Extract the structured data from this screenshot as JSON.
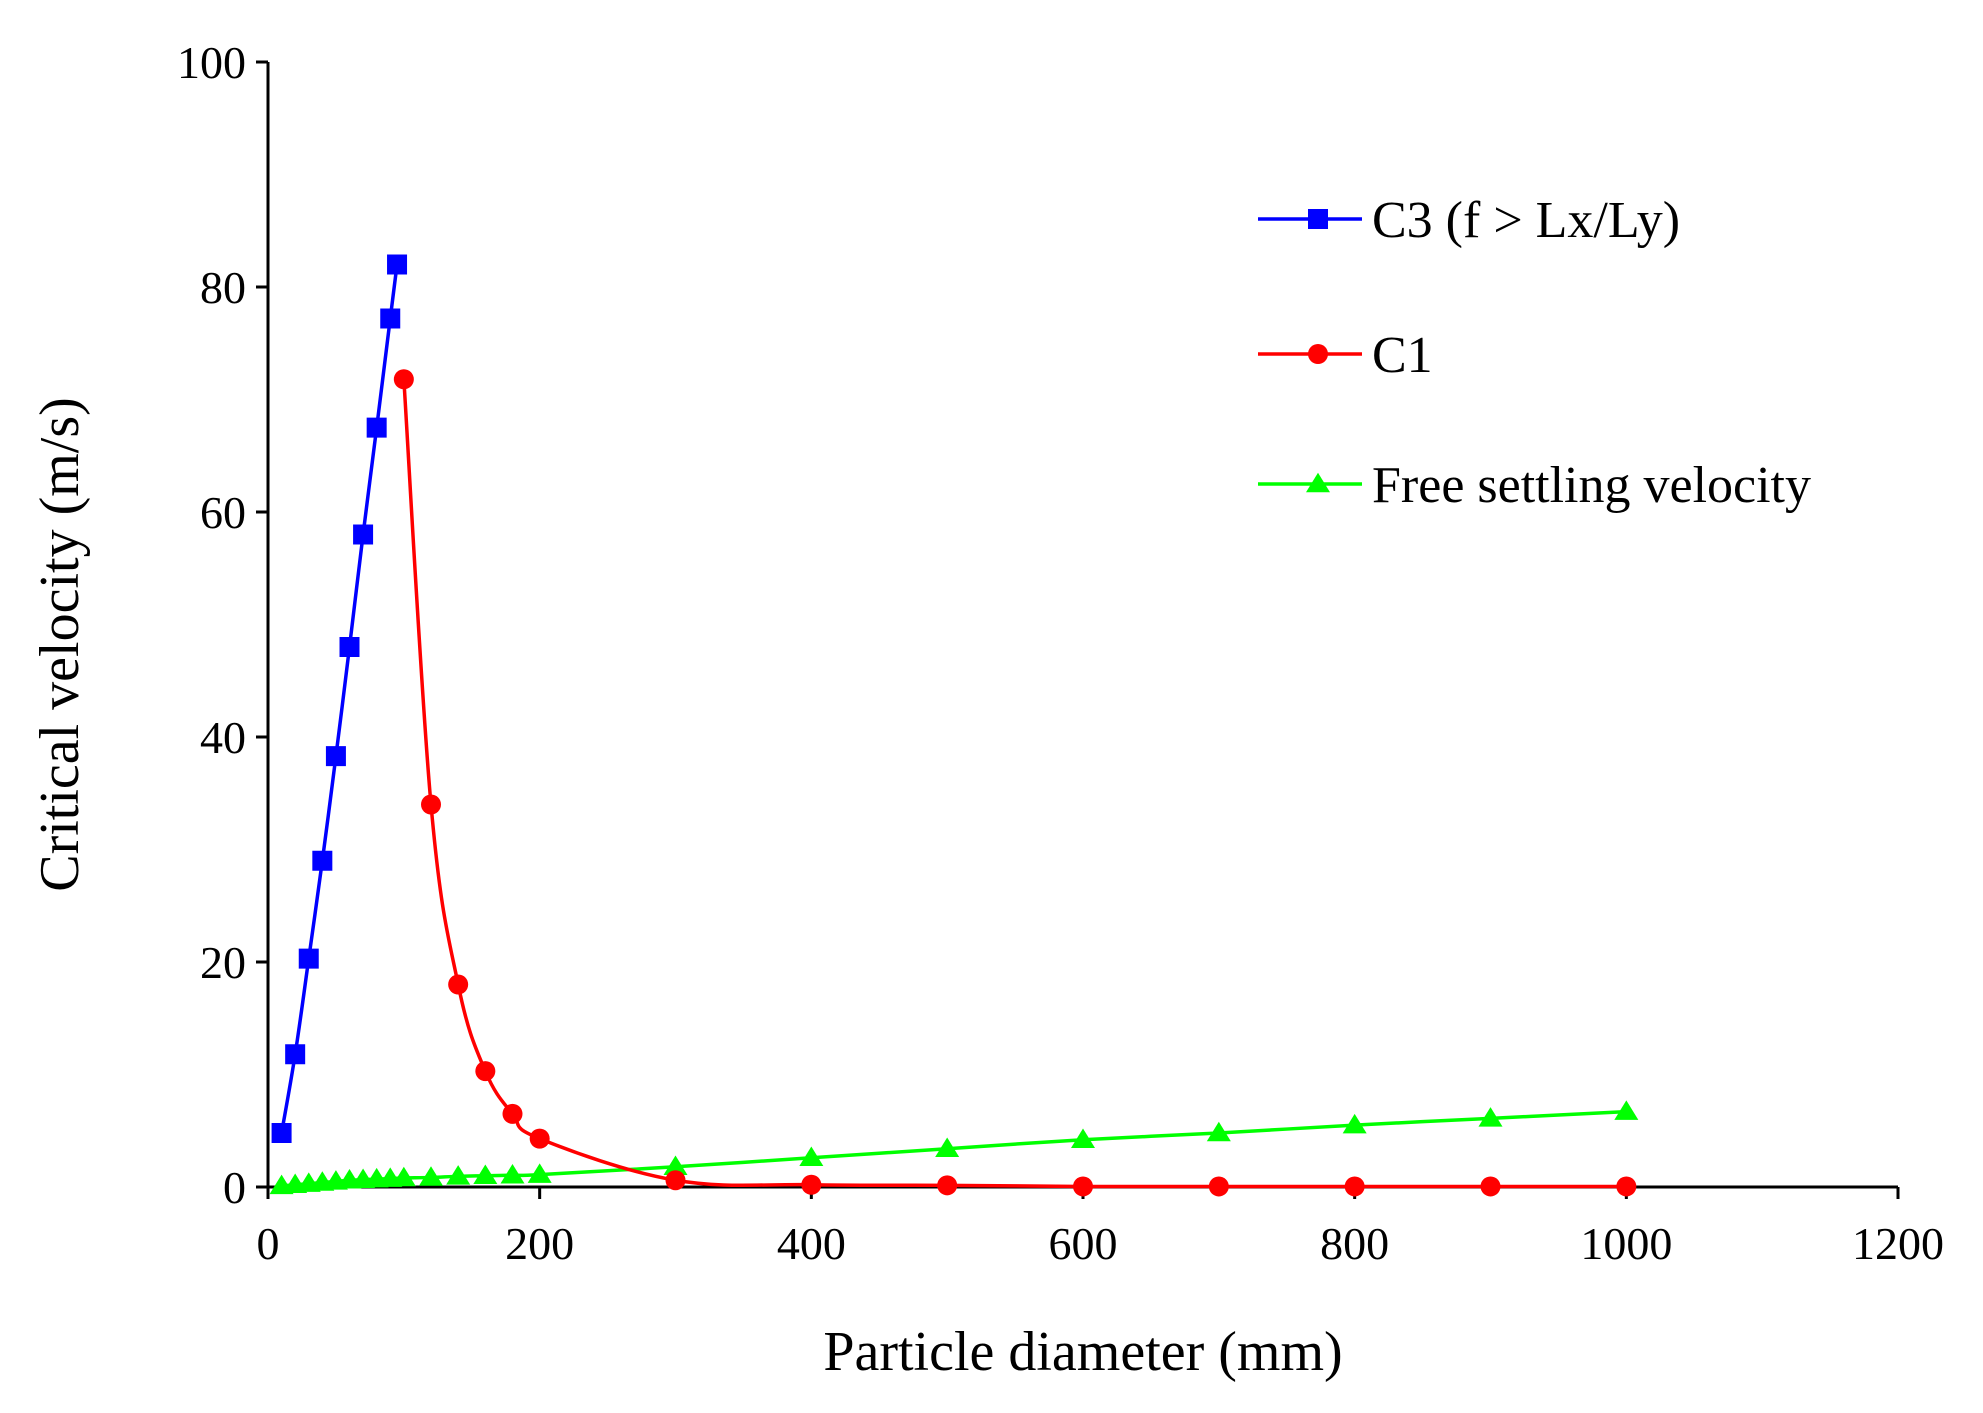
{
  "chart_data": {
    "type": "line",
    "xlabel": "Particle diameter (mm)",
    "ylabel": "Critical velocity (m/s)",
    "xlim": [
      0,
      1200
    ],
    "ylim": [
      0,
      100
    ],
    "xticks": [
      0,
      200,
      400,
      600,
      800,
      1000,
      1200
    ],
    "yticks": [
      0,
      20,
      40,
      60,
      80,
      100
    ],
    "xtick_labels": [
      "0",
      "200",
      "400",
      "600",
      "800",
      "1000",
      "1200"
    ],
    "ytick_labels": [
      "0",
      "20",
      "40",
      "60",
      "80",
      "100"
    ],
    "legend_position": "top-right",
    "grid": false,
    "series": [
      {
        "name": "C3 (f > Lx/Ly)",
        "color": "#0000ff",
        "marker": "square",
        "x": [
          10,
          20,
          30,
          40,
          50,
          60,
          70,
          80,
          90,
          95
        ],
        "y": [
          4.8,
          11.8,
          20.3,
          29,
          38.3,
          48,
          58,
          67.5,
          77.2,
          82
        ]
      },
      {
        "name": "C1",
        "color": "#ff0000",
        "marker": "circle",
        "x": [
          100,
          120,
          140,
          160,
          180,
          200,
          300,
          400,
          500,
          600,
          700,
          800,
          900,
          1000
        ],
        "y": [
          71.8,
          34,
          18,
          10.3,
          6.5,
          4.3,
          0.6,
          0.2,
          0.15,
          0.05,
          0.05,
          0.05,
          0.05,
          0.05
        ]
      },
      {
        "name": "Free settling velocity",
        "color": "#00ff00",
        "marker": "triangle",
        "x": [
          10,
          20,
          30,
          40,
          50,
          60,
          70,
          80,
          90,
          100,
          120,
          140,
          160,
          180,
          200,
          300,
          400,
          500,
          600,
          700,
          800,
          900,
          1000
        ],
        "y": [
          0.1,
          0.2,
          0.3,
          0.4,
          0.5,
          0.6,
          0.65,
          0.7,
          0.75,
          0.8,
          0.85,
          0.95,
          1.0,
          1.05,
          1.1,
          1.8,
          2.6,
          3.4,
          4.2,
          4.8,
          5.5,
          6.1,
          6.7
        ]
      }
    ]
  }
}
